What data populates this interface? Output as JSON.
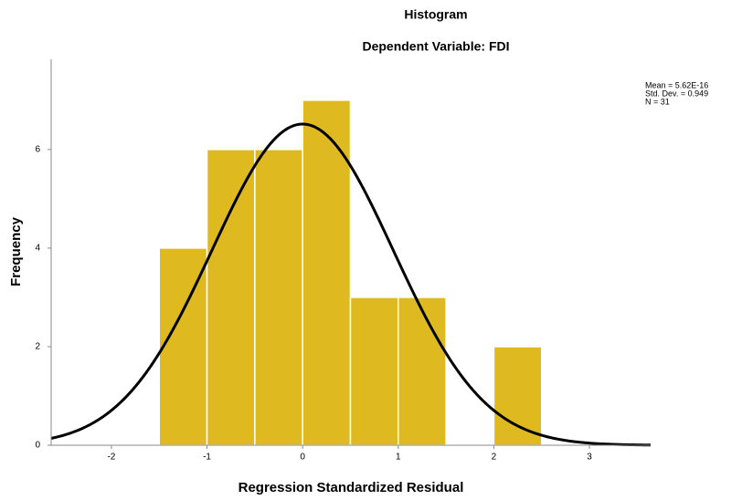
{
  "chart_data": {
    "type": "histogram",
    "title": "Histogram",
    "subtitle": "Dependent Variable: FDI",
    "x_label": "Regression Standardized Residual",
    "y_label": "Frequency",
    "bins": [
      -1.5,
      -1,
      -0.5,
      0,
      0.5,
      1,
      1.5,
      2,
      2.5
    ],
    "values": [
      4,
      6,
      6,
      7,
      3,
      3,
      0,
      2
    ],
    "color": "#dfb920",
    "curve_color": "#000000",
    "xlim": [
      -2.63,
      3.64
    ],
    "ylim": [
      0,
      7.83
    ],
    "xticks": [
      -2,
      -1,
      0,
      1,
      2,
      3
    ],
    "yticks": [
      0,
      2,
      4,
      6
    ],
    "grid": false,
    "stats": {
      "mean": 5.62e-16,
      "std_dev": 0.949,
      "n": 31,
      "labels": [
        "Mean = 5.62E-16",
        "Std. Dev. = 0.949",
        "N = 31"
      ]
    }
  }
}
